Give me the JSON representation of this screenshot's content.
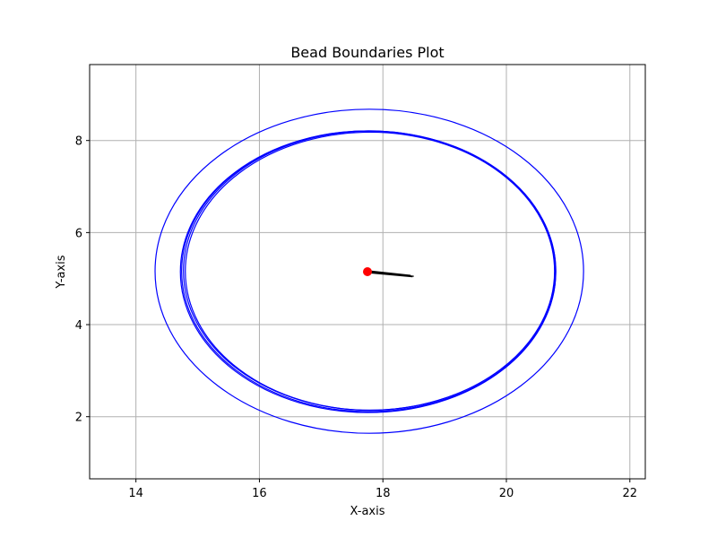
{
  "chart_data": {
    "type": "line",
    "title": "Bead Boundaries Plot",
    "xlabel": "X-axis",
    "ylabel": "Y-axis",
    "xlim": [
      13.25,
      22.25
    ],
    "ylim": [
      0.65,
      9.65
    ],
    "xticks": [
      14,
      16,
      18,
      20,
      22
    ],
    "yticks": [
      2,
      4,
      6,
      8
    ],
    "grid": true,
    "colors": {
      "boundary": "#0000ff",
      "center": "#ff0000",
      "trajectory": "#000000",
      "grid": "#b0b0b0"
    },
    "series": [
      {
        "kind": "ellipse",
        "cx": 17.78,
        "cy": 5.16,
        "rx": 3.47,
        "ry": 3.52
      },
      {
        "kind": "ellipse",
        "cx": 17.77,
        "cy": 5.16,
        "rx": 3.03,
        "ry": 3.05
      },
      {
        "kind": "ellipse",
        "cx": 17.78,
        "cy": 5.17,
        "rx": 3.01,
        "ry": 3.03
      },
      {
        "kind": "ellipse",
        "cx": 17.76,
        "cy": 5.15,
        "rx": 3.04,
        "ry": 3.06
      },
      {
        "kind": "ellipse",
        "cx": 17.79,
        "cy": 5.16,
        "rx": 2.99,
        "ry": 3.02
      }
    ],
    "center_point": {
      "x": 17.75,
      "y": 5.15
    },
    "trajectory": [
      {
        "x": 17.75,
        "y": 5.15
      },
      {
        "x": 18.5,
        "y": 5.05
      },
      {
        "x": 17.76,
        "y": 5.17
      },
      {
        "x": 18.45,
        "y": 5.07
      },
      {
        "x": 17.74,
        "y": 5.13
      },
      {
        "x": 18.48,
        "y": 5.04
      }
    ]
  }
}
